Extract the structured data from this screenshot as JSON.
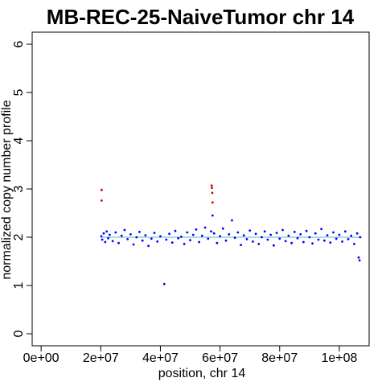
{
  "chart_data": {
    "type": "scatter",
    "title": "MB-REC-25-NaiveTumor chr 14",
    "xlabel": "position, chr 14",
    "ylabel": "normalized copy number profile",
    "xlim": [
      -3000000,
      110000000
    ],
    "ylim": [
      -0.25,
      6.25
    ],
    "x_ticks": [
      0,
      20000000,
      40000000,
      60000000,
      80000000,
      100000000
    ],
    "x_tick_labels": [
      "0e+00",
      "2e+07",
      "4e+07",
      "6e+07",
      "8e+07",
      "1e+08"
    ],
    "y_ticks": [
      0,
      1,
      2,
      3,
      4,
      5,
      6
    ],
    "y_tick_labels": [
      "0",
      "1",
      "2",
      "3",
      "4",
      "5",
      "6"
    ],
    "grid": false,
    "legend": "none",
    "colors": {
      "normal": "#0000ff",
      "gain": "#cc0000",
      "segment": "#add8e6"
    },
    "series": [
      {
        "color": "#0000ff",
        "points": [
          [
            20200000,
            2.02
          ],
          [
            20500000,
            1.95
          ],
          [
            21000000,
            2.08
          ],
          [
            21500000,
            1.9
          ],
          [
            22000000,
            2.12
          ],
          [
            22500000,
            1.98
          ],
          [
            23000000,
            2.05
          ],
          [
            24000000,
            1.92
          ],
          [
            25000000,
            2.1
          ],
          [
            26000000,
            1.88
          ],
          [
            27000000,
            2.03
          ],
          [
            28000000,
            2.15
          ],
          [
            29000000,
            1.96
          ],
          [
            30000000,
            2.06
          ],
          [
            31000000,
            1.85
          ],
          [
            32000000,
            2.0
          ],
          [
            33000000,
            2.11
          ],
          [
            34000000,
            1.93
          ],
          [
            35000000,
            2.04
          ],
          [
            36000000,
            1.82
          ],
          [
            37000000,
            1.97
          ],
          [
            38000000,
            2.09
          ],
          [
            39000000,
            1.91
          ],
          [
            40000000,
            2.02
          ],
          [
            41300000,
            1.03
          ],
          [
            42000000,
            1.95
          ],
          [
            43000000,
            2.07
          ],
          [
            44000000,
            1.89
          ],
          [
            45000000,
            2.13
          ],
          [
            46000000,
            1.98
          ],
          [
            47000000,
            2.01
          ],
          [
            48000000,
            1.86
          ],
          [
            49000000,
            2.1
          ],
          [
            50000000,
            1.94
          ],
          [
            51000000,
            2.05
          ],
          [
            52000000,
            2.16
          ],
          [
            53000000,
            1.9
          ],
          [
            54000000,
            2.03
          ],
          [
            55000000,
            2.2
          ],
          [
            56000000,
            1.97
          ],
          [
            57000000,
            2.12
          ],
          [
            57500000,
            2.45
          ],
          [
            58000000,
            2.08
          ],
          [
            59000000,
            1.88
          ],
          [
            60000000,
            2.02
          ],
          [
            61000000,
            2.18
          ],
          [
            62000000,
            1.93
          ],
          [
            63000000,
            2.06
          ],
          [
            64000000,
            2.35
          ],
          [
            65000000,
            1.99
          ],
          [
            66000000,
            2.1
          ],
          [
            67000000,
            1.84
          ],
          [
            68000000,
            2.04
          ],
          [
            69000000,
            1.96
          ],
          [
            70000000,
            2.14
          ],
          [
            71000000,
            1.91
          ],
          [
            72000000,
            2.07
          ],
          [
            73000000,
            1.86
          ],
          [
            74000000,
            2.0
          ],
          [
            75000000,
            2.12
          ],
          [
            76000000,
            1.95
          ],
          [
            77000000,
            2.05
          ],
          [
            78000000,
            1.83
          ],
          [
            79000000,
            2.09
          ],
          [
            80000000,
            1.97
          ],
          [
            81000000,
            2.15
          ],
          [
            82000000,
            1.92
          ],
          [
            83000000,
            2.03
          ],
          [
            84000000,
            1.88
          ],
          [
            85000000,
            2.11
          ],
          [
            86000000,
            1.98
          ],
          [
            87000000,
            2.06
          ],
          [
            88000000,
            1.9
          ],
          [
            89000000,
            2.13
          ],
          [
            90000000,
            2.0
          ],
          [
            91000000,
            1.87
          ],
          [
            92000000,
            2.08
          ],
          [
            93000000,
            1.95
          ],
          [
            94000000,
            2.17
          ],
          [
            95000000,
            1.93
          ],
          [
            96000000,
            2.04
          ],
          [
            97000000,
            1.89
          ],
          [
            98000000,
            2.1
          ],
          [
            99000000,
            1.97
          ],
          [
            100000000,
            2.05
          ],
          [
            101000000,
            1.91
          ],
          [
            102000000,
            2.12
          ],
          [
            103000000,
            1.96
          ],
          [
            104000000,
            2.03
          ],
          [
            105000000,
            1.86
          ],
          [
            106000000,
            2.08
          ],
          [
            106500000,
            1.58
          ],
          [
            106800000,
            1.52
          ],
          [
            107000000,
            2.0
          ]
        ]
      },
      {
        "color": "#cc0000",
        "points": [
          [
            20300000,
            2.98
          ],
          [
            20300000,
            2.76
          ],
          [
            57200000,
            3.07
          ],
          [
            57300000,
            3.02
          ],
          [
            57400000,
            2.92
          ],
          [
            57500000,
            2.72
          ]
        ]
      }
    ],
    "segments": [
      {
        "x0": 20000000,
        "x1": 107500000,
        "y": 2.0,
        "color": "#add8e6"
      }
    ]
  }
}
